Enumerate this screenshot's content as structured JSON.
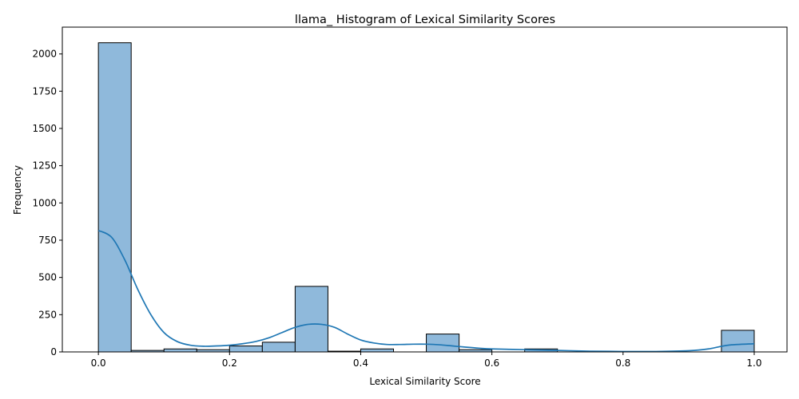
{
  "chart_data": {
    "type": "bar",
    "title": "llama_ Histogram of Lexical Similarity Scores",
    "xlabel": "Lexical Similarity Score",
    "ylabel": "Frequency",
    "xlim": [
      -0.055,
      1.05
    ],
    "ylim": [
      0,
      2180
    ],
    "xticks": [
      0.0,
      0.2,
      0.4,
      0.6,
      0.8,
      1.0
    ],
    "xtick_labels": [
      "0.0",
      "0.2",
      "0.4",
      "0.6",
      "0.8",
      "1.0"
    ],
    "yticks": [
      0,
      250,
      500,
      750,
      1000,
      1250,
      1500,
      1750,
      2000
    ],
    "ytick_labels": [
      "0",
      "250",
      "500",
      "750",
      "1000",
      "1250",
      "1500",
      "1750",
      "2000"
    ],
    "bin_edges": [
      0.0,
      0.05,
      0.1,
      0.15,
      0.2,
      0.25,
      0.3,
      0.35,
      0.4,
      0.45,
      0.5,
      0.55,
      0.6,
      0.65,
      0.7,
      0.75,
      0.8,
      0.85,
      0.9,
      0.95,
      1.0
    ],
    "values": [
      2075,
      10,
      20,
      15,
      40,
      65,
      440,
      5,
      20,
      0,
      120,
      15,
      0,
      20,
      0,
      0,
      0,
      0,
      0,
      145
    ],
    "kde": {
      "x": [
        0.0,
        0.02,
        0.04,
        0.06,
        0.08,
        0.1,
        0.12,
        0.14,
        0.16,
        0.18,
        0.2,
        0.22,
        0.24,
        0.26,
        0.28,
        0.3,
        0.32,
        0.34,
        0.36,
        0.38,
        0.4,
        0.42,
        0.44,
        0.46,
        0.48,
        0.5,
        0.52,
        0.54,
        0.56,
        0.58,
        0.6,
        0.65,
        0.7,
        0.75,
        0.8,
        0.85,
        0.9,
        0.93,
        0.96,
        1.0
      ],
      "y": [
        815,
        770,
        620,
        420,
        250,
        130,
        70,
        45,
        38,
        40,
        45,
        55,
        70,
        95,
        130,
        165,
        185,
        185,
        165,
        120,
        80,
        60,
        50,
        50,
        52,
        52,
        48,
        40,
        32,
        25,
        20,
        15,
        10,
        5,
        3,
        3,
        8,
        20,
        45,
        55
      ]
    },
    "bar_color": "#8fb9db",
    "bar_edge_color": "#000000",
    "line_color": "#1f77b4",
    "grid": false
  }
}
